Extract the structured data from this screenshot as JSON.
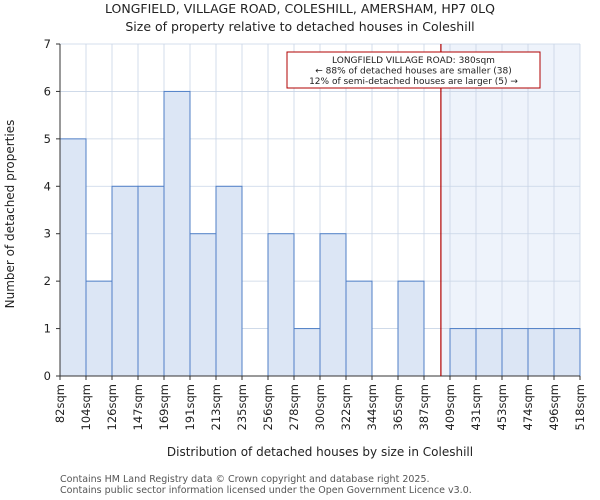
{
  "chart_data": {
    "type": "bar",
    "title": "LONGFIELD, VILLAGE ROAD, COLESHILL, AMERSHAM, HP7 0LQ",
    "subtitle": "Size of property relative to detached houses in Coleshill",
    "xlabel": "Distribution of detached houses by size in Coleshill",
    "ylabel": "Number of detached properties",
    "categories": [
      "82sqm",
      "104sqm",
      "126sqm",
      "147sqm",
      "169sqm",
      "191sqm",
      "213sqm",
      "235sqm",
      "256sqm",
      "278sqm",
      "300sqm",
      "322sqm",
      "344sqm",
      "365sqm",
      "387sqm",
      "409sqm",
      "431sqm",
      "453sqm",
      "474sqm",
      "496sqm"
    ],
    "last_edge_label": "518sqm",
    "values": [
      5,
      2,
      4,
      4,
      6,
      3,
      4,
      0,
      3,
      1,
      3,
      2,
      0,
      2,
      0,
      1,
      1,
      1,
      1,
      1
    ],
    "ylim": [
      0,
      7
    ],
    "yticks": [
      0,
      1,
      2,
      3,
      4,
      5,
      6,
      7
    ],
    "marker_value_sqm": 380,
    "marker_bin_fraction": 14.65,
    "annotation": {
      "line1": "LONGFIELD VILLAGE ROAD: 380sqm",
      "line2": "← 88% of detached houses are smaller (38)",
      "line3": "12% of semi-detached houses are larger (5) →"
    },
    "colors": {
      "bar_fill": "#dce6f5",
      "bar_stroke": "#4f7fc6",
      "marker": "#b00000",
      "highlight_region": "#eef3fb",
      "grid": "#c8d4e6"
    }
  },
  "footer": {
    "line1": "Contains HM Land Registry data © Crown copyright and database right 2025.",
    "line2": "Contains public sector information licensed under the Open Government Licence v3.0."
  }
}
